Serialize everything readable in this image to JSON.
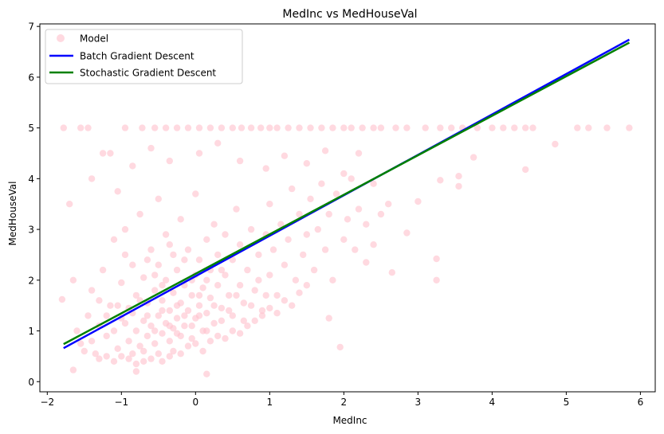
{
  "chart_data": {
    "type": "scatter",
    "title": "MedInc vs MedHouseVal",
    "xlabel": "MedInc",
    "ylabel": "MedHouseVal",
    "xlim": [
      -2.1,
      6.2
    ],
    "ylim": [
      -0.2,
      7.05
    ],
    "xticks": [
      -2,
      -1,
      0,
      1,
      2,
      3,
      4,
      5,
      6
    ],
    "yticks": [
      0,
      1,
      2,
      3,
      4,
      5,
      6,
      7
    ],
    "grid": false,
    "legend_position": "top-left",
    "series": [
      {
        "name": "Model",
        "kind": "scatter",
        "color": "#ffc0cb",
        "points": [
          [
            -1.78,
            5.0
          ],
          [
            -1.55,
            5.0
          ],
          [
            -1.45,
            5.0
          ],
          [
            -0.95,
            5.0
          ],
          [
            -0.72,
            5.0
          ],
          [
            -0.55,
            5.0
          ],
          [
            -0.4,
            5.0
          ],
          [
            -0.25,
            5.0
          ],
          [
            -0.1,
            5.0
          ],
          [
            0.05,
            5.0
          ],
          [
            0.2,
            5.0
          ],
          [
            0.35,
            5.0
          ],
          [
            0.5,
            5.0
          ],
          [
            0.62,
            5.0
          ],
          [
            0.75,
            5.0
          ],
          [
            0.88,
            5.0
          ],
          [
            1.0,
            5.0
          ],
          [
            1.1,
            5.0
          ],
          [
            1.25,
            5.0
          ],
          [
            1.4,
            5.0
          ],
          [
            1.55,
            5.0
          ],
          [
            1.7,
            5.0
          ],
          [
            1.85,
            5.0
          ],
          [
            2.0,
            5.0
          ],
          [
            2.1,
            5.0
          ],
          [
            2.25,
            5.0
          ],
          [
            2.4,
            5.0
          ],
          [
            2.5,
            5.0
          ],
          [
            2.7,
            5.0
          ],
          [
            2.85,
            5.0
          ],
          [
            3.1,
            5.0
          ],
          [
            3.3,
            5.0
          ],
          [
            3.45,
            5.0
          ],
          [
            3.6,
            5.0
          ],
          [
            3.8,
            5.0
          ],
          [
            4.0,
            5.0
          ],
          [
            4.15,
            5.0
          ],
          [
            4.3,
            5.0
          ],
          [
            4.45,
            5.0
          ],
          [
            4.55,
            5.0
          ],
          [
            5.15,
            5.0
          ],
          [
            5.3,
            5.0
          ],
          [
            5.55,
            5.0
          ],
          [
            5.85,
            5.0
          ],
          [
            4.85,
            4.68
          ],
          [
            3.75,
            4.42
          ],
          [
            4.45,
            4.18
          ],
          [
            3.55,
            3.85
          ],
          [
            3.3,
            3.97
          ],
          [
            3.55,
            4.05
          ],
          [
            3.0,
            3.55
          ],
          [
            2.85,
            2.93
          ],
          [
            3.25,
            2.42
          ],
          [
            3.25,
            2.0
          ],
          [
            2.65,
            2.15
          ],
          [
            2.3,
            2.35
          ],
          [
            1.8,
            1.25
          ],
          [
            1.95,
            0.68
          ],
          [
            0.15,
            0.15
          ],
          [
            -0.8,
            0.2
          ],
          [
            -1.65,
            0.23
          ],
          [
            -1.8,
            1.62
          ],
          [
            -1.65,
            2.0
          ],
          [
            -1.7,
            3.5
          ],
          [
            -1.4,
            4.0
          ],
          [
            -1.25,
            4.5
          ],
          [
            -1.15,
            4.5
          ],
          [
            -1.05,
            3.75
          ],
          [
            -0.85,
            4.25
          ],
          [
            -0.6,
            4.6
          ],
          [
            -0.35,
            4.35
          ],
          [
            0.05,
            4.5
          ],
          [
            0.3,
            4.7
          ],
          [
            0.6,
            4.35
          ],
          [
            0.95,
            4.2
          ],
          [
            1.2,
            4.45
          ],
          [
            1.5,
            4.3
          ],
          [
            1.75,
            4.55
          ],
          [
            2.0,
            4.1
          ],
          [
            2.2,
            4.5
          ],
          [
            2.4,
            3.9
          ],
          [
            2.6,
            3.5
          ],
          [
            -1.6,
            1.0
          ],
          [
            -1.55,
            0.75
          ],
          [
            -1.45,
            1.3
          ],
          [
            -1.4,
            1.8
          ],
          [
            -1.35,
            0.55
          ],
          [
            -1.3,
            1.1
          ],
          [
            -1.25,
            2.2
          ],
          [
            -1.2,
            0.9
          ],
          [
            -1.15,
            1.5
          ],
          [
            -1.1,
            2.8
          ],
          [
            -1.05,
            0.65
          ],
          [
            -1.0,
            1.25
          ],
          [
            -1.0,
            1.95
          ],
          [
            -0.95,
            3.0
          ],
          [
            -0.9,
            0.8
          ],
          [
            -0.9,
            1.45
          ],
          [
            -0.85,
            2.3
          ],
          [
            -0.8,
            1.0
          ],
          [
            -0.8,
            1.7
          ],
          [
            -0.75,
            3.3
          ],
          [
            -0.7,
            0.6
          ],
          [
            -0.7,
            1.2
          ],
          [
            -0.7,
            2.05
          ],
          [
            -0.65,
            0.9
          ],
          [
            -0.65,
            1.55
          ],
          [
            -0.6,
            2.6
          ],
          [
            -0.6,
            1.1
          ],
          [
            -0.55,
            0.75
          ],
          [
            -0.55,
            1.8
          ],
          [
            -0.5,
            1.3
          ],
          [
            -0.5,
            2.3
          ],
          [
            -0.5,
            3.6
          ],
          [
            -0.45,
            0.95
          ],
          [
            -0.45,
            1.6
          ],
          [
            -0.4,
            1.15
          ],
          [
            -0.4,
            2.0
          ],
          [
            -0.4,
            2.9
          ],
          [
            -0.35,
            0.8
          ],
          [
            -0.35,
            1.4
          ],
          [
            -0.3,
            1.75
          ],
          [
            -0.3,
            2.5
          ],
          [
            -0.3,
            1.05
          ],
          [
            -0.25,
            1.25
          ],
          [
            -0.25,
            2.2
          ],
          [
            -0.2,
            0.9
          ],
          [
            -0.2,
            1.55
          ],
          [
            -0.2,
            3.2
          ],
          [
            -0.15,
            1.9
          ],
          [
            -0.15,
            1.1
          ],
          [
            -0.1,
            1.4
          ],
          [
            -0.1,
            2.6
          ],
          [
            -0.05,
            0.85
          ],
          [
            -0.05,
            1.7
          ],
          [
            0.0,
            1.25
          ],
          [
            0.0,
            2.1
          ],
          [
            0.0,
            3.7
          ],
          [
            0.05,
            1.5
          ],
          [
            0.05,
            2.4
          ],
          [
            0.1,
            1.0
          ],
          [
            0.1,
            1.85
          ],
          [
            0.15,
            1.35
          ],
          [
            0.15,
            2.8
          ],
          [
            0.2,
            1.65
          ],
          [
            0.2,
            2.2
          ],
          [
            0.25,
            1.15
          ],
          [
            0.25,
            3.1
          ],
          [
            0.3,
            1.9
          ],
          [
            0.3,
            2.5
          ],
          [
            0.35,
            1.45
          ],
          [
            0.4,
            2.1
          ],
          [
            0.4,
            2.9
          ],
          [
            0.45,
            1.7
          ],
          [
            0.5,
            1.3
          ],
          [
            0.5,
            2.4
          ],
          [
            0.55,
            3.4
          ],
          [
            0.6,
            1.9
          ],
          [
            0.6,
            2.7
          ],
          [
            0.65,
            1.55
          ],
          [
            0.7,
            2.2
          ],
          [
            0.75,
            3.0
          ],
          [
            0.8,
            1.8
          ],
          [
            0.85,
            2.5
          ],
          [
            0.9,
            1.4
          ],
          [
            0.95,
            2.9
          ],
          [
            1.0,
            2.1
          ],
          [
            1.0,
            3.5
          ],
          [
            1.05,
            2.6
          ],
          [
            1.1,
            1.7
          ],
          [
            1.15,
            3.1
          ],
          [
            1.2,
            2.3
          ],
          [
            1.25,
            2.8
          ],
          [
            1.3,
            3.8
          ],
          [
            1.35,
            2.0
          ],
          [
            1.4,
            3.3
          ],
          [
            1.45,
            2.5
          ],
          [
            1.5,
            2.9
          ],
          [
            1.55,
            3.6
          ],
          [
            1.6,
            2.2
          ],
          [
            1.65,
            3.0
          ],
          [
            1.7,
            3.9
          ],
          [
            1.75,
            2.6
          ],
          [
            1.8,
            3.3
          ],
          [
            1.85,
            2.0
          ],
          [
            1.9,
            3.7
          ],
          [
            2.0,
            2.8
          ],
          [
            2.05,
            3.2
          ],
          [
            2.1,
            4.0
          ],
          [
            2.15,
            2.6
          ],
          [
            2.2,
            3.4
          ],
          [
            2.3,
            3.1
          ],
          [
            2.4,
            2.7
          ],
          [
            2.5,
            3.3
          ],
          [
            -1.5,
            0.6
          ],
          [
            -1.3,
            0.45
          ],
          [
            -1.2,
            0.5
          ],
          [
            -1.1,
            0.4
          ],
          [
            -1.0,
            0.5
          ],
          [
            -0.9,
            0.45
          ],
          [
            -0.85,
            0.55
          ],
          [
            -0.8,
            0.35
          ],
          [
            -0.7,
            0.4
          ],
          [
            -0.6,
            0.45
          ],
          [
            -0.5,
            0.55
          ],
          [
            -0.45,
            0.4
          ],
          [
            -0.35,
            0.5
          ],
          [
            -0.3,
            0.6
          ],
          [
            -0.2,
            0.55
          ],
          [
            -0.1,
            0.7
          ],
          [
            0.0,
            0.75
          ],
          [
            0.1,
            0.6
          ],
          [
            0.2,
            0.8
          ],
          [
            0.3,
            0.9
          ],
          [
            0.4,
            0.85
          ],
          [
            0.5,
            1.0
          ],
          [
            0.6,
            0.95
          ],
          [
            0.7,
            1.1
          ],
          [
            0.8,
            1.2
          ],
          [
            0.9,
            1.3
          ],
          [
            1.0,
            1.45
          ],
          [
            1.1,
            1.35
          ],
          [
            1.2,
            1.6
          ],
          [
            1.3,
            1.5
          ],
          [
            1.4,
            1.75
          ],
          [
            1.5,
            1.9
          ],
          [
            -1.4,
            0.8
          ],
          [
            -1.3,
            1.6
          ],
          [
            -1.2,
            1.3
          ],
          [
            -1.1,
            1.0
          ],
          [
            -1.05,
            1.5
          ],
          [
            -0.95,
            1.15
          ],
          [
            -0.95,
            2.5
          ],
          [
            -0.85,
            1.35
          ],
          [
            -0.75,
            1.6
          ],
          [
            -0.75,
            0.7
          ],
          [
            -0.65,
            1.3
          ],
          [
            -0.65,
            2.4
          ],
          [
            -0.55,
            1.0
          ],
          [
            -0.55,
            2.1
          ],
          [
            -0.45,
            1.4
          ],
          [
            -0.45,
            1.9
          ],
          [
            -0.35,
            1.1
          ],
          [
            -0.35,
            2.7
          ],
          [
            -0.25,
            1.5
          ],
          [
            -0.25,
            0.95
          ],
          [
            -0.15,
            1.3
          ],
          [
            -0.15,
            2.4
          ],
          [
            -0.05,
            1.1
          ],
          [
            -0.05,
            2.0
          ],
          [
            0.05,
            1.3
          ],
          [
            0.05,
            1.7
          ],
          [
            0.15,
            1.0
          ],
          [
            0.15,
            2.0
          ],
          [
            0.25,
            1.5
          ],
          [
            0.35,
            1.2
          ],
          [
            0.35,
            2.2
          ],
          [
            0.45,
            1.4
          ],
          [
            0.55,
            1.7
          ],
          [
            0.65,
            1.2
          ],
          [
            0.75,
            1.5
          ],
          [
            0.85,
            2.0
          ],
          [
            0.95,
            1.7
          ]
        ]
      },
      {
        "name": "Batch Gradient Descent",
        "kind": "line",
        "color": "#0000ff",
        "x": [
          -1.78,
          5.85
        ],
        "y": [
          0.66,
          6.74
        ]
      },
      {
        "name": "Stochastic Gradient Descent",
        "kind": "line",
        "color": "#008000",
        "x": [
          -1.78,
          5.85
        ],
        "y": [
          0.74,
          6.68
        ]
      }
    ]
  }
}
